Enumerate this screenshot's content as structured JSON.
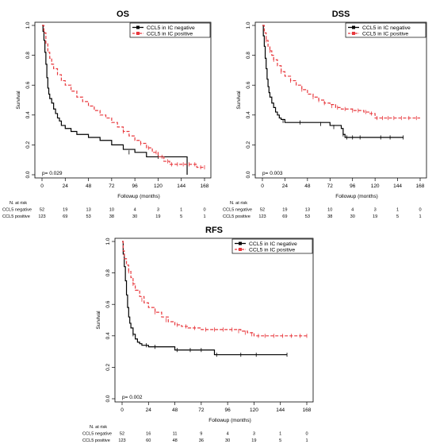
{
  "chart_data": [
    {
      "id": "os",
      "type": "line",
      "title": "OS",
      "xlabel": "Followup (months)",
      "ylabel": "Survival",
      "xlim": [
        0,
        168
      ],
      "ylim": [
        0,
        1
      ],
      "xticks": [
        "0",
        "24",
        "48",
        "72",
        "96",
        "120",
        "144",
        "168"
      ],
      "yticks": [
        "0.0",
        "0.2",
        "0.4",
        "0.6",
        "0.8",
        "1.0"
      ],
      "pvalue": "p= 0.029",
      "legend_position": "top-right",
      "series": [
        {
          "name": "CCL5 in IC negative",
          "color": "#000000",
          "dashed": false,
          "steps": [
            [
              0,
              1.0
            ],
            [
              1,
              0.96
            ],
            [
              2,
              0.9
            ],
            [
              3,
              0.82
            ],
            [
              4,
              0.74
            ],
            [
              5,
              0.65
            ],
            [
              6,
              0.58
            ],
            [
              7,
              0.54
            ],
            [
              8,
              0.51
            ],
            [
              10,
              0.48
            ],
            [
              12,
              0.44
            ],
            [
              14,
              0.41
            ],
            [
              16,
              0.38
            ],
            [
              18,
              0.36
            ],
            [
              20,
              0.33
            ],
            [
              24,
              0.31
            ],
            [
              30,
              0.29
            ],
            [
              36,
              0.27
            ],
            [
              48,
              0.25
            ],
            [
              60,
              0.23
            ],
            [
              72,
              0.2
            ],
            [
              84,
              0.17
            ],
            [
              96,
              0.15
            ],
            [
              108,
              0.12
            ],
            [
              150,
              0.12
            ],
            [
              150,
              0.0
            ]
          ],
          "censors": [
            [
              90,
              0.15
            ],
            [
              120,
              0.12
            ]
          ]
        },
        {
          "name": "CCL5 in IC positive",
          "color": "#e8383d",
          "dashed": true,
          "steps": [
            [
              0,
              1.0
            ],
            [
              2,
              0.95
            ],
            [
              4,
              0.88
            ],
            [
              6,
              0.82
            ],
            [
              8,
              0.78
            ],
            [
              10,
              0.74
            ],
            [
              12,
              0.71
            ],
            [
              16,
              0.67
            ],
            [
              20,
              0.63
            ],
            [
              24,
              0.6
            ],
            [
              30,
              0.56
            ],
            [
              36,
              0.52
            ],
            [
              42,
              0.49
            ],
            [
              48,
              0.46
            ],
            [
              54,
              0.43
            ],
            [
              60,
              0.4
            ],
            [
              66,
              0.38
            ],
            [
              72,
              0.35
            ],
            [
              78,
              0.32
            ],
            [
              84,
              0.29
            ],
            [
              90,
              0.26
            ],
            [
              96,
              0.23
            ],
            [
              102,
              0.21
            ],
            [
              108,
              0.18
            ],
            [
              114,
              0.15
            ],
            [
              120,
              0.12
            ],
            [
              126,
              0.09
            ],
            [
              132,
              0.07
            ],
            [
              156,
              0.07
            ],
            [
              160,
              0.05
            ],
            [
              168,
              0.05
            ]
          ],
          "censors": [
            [
              84,
              0.29
            ],
            [
              102,
              0.21
            ],
            [
              110,
              0.18
            ],
            [
              118,
              0.15
            ],
            [
              124,
              0.12
            ],
            [
              130,
              0.09
            ],
            [
              134,
              0.07
            ],
            [
              140,
              0.07
            ],
            [
              146,
              0.07
            ],
            [
              152,
              0.07
            ],
            [
              158,
              0.07
            ],
            [
              164,
              0.05
            ],
            [
              168,
              0.05
            ]
          ]
        }
      ],
      "risk_table": {
        "header": "N. at risk",
        "rows": [
          {
            "label": "CCL5 negative",
            "values": [
              "52",
              "19",
              "13",
              "10",
              "4",
              "3",
              "1",
              "0"
            ]
          },
          {
            "label": "CCL5 positive",
            "values": [
              "123",
              "69",
              "53",
              "38",
              "30",
              "19",
              "5",
              "1"
            ]
          }
        ]
      }
    },
    {
      "id": "dss",
      "type": "line",
      "title": "DSS",
      "xlabel": "Followup (months)",
      "ylabel": "Survival",
      "xlim": [
        0,
        168
      ],
      "ylim": [
        0,
        1
      ],
      "xticks": [
        "0",
        "24",
        "48",
        "72",
        "96",
        "120",
        "144",
        "168"
      ],
      "yticks": [
        "0.0",
        "0.2",
        "0.4",
        "0.6",
        "0.8",
        "1.0"
      ],
      "pvalue": "p= 0.003",
      "legend_position": "top-right",
      "series": [
        {
          "name": "CCL5 in IC negative",
          "color": "#000000",
          "dashed": false,
          "steps": [
            [
              0,
              1.0
            ],
            [
              1,
              0.93
            ],
            [
              2,
              0.86
            ],
            [
              3,
              0.78
            ],
            [
              4,
              0.71
            ],
            [
              5,
              0.64
            ],
            [
              6,
              0.59
            ],
            [
              7,
              0.55
            ],
            [
              8,
              0.52
            ],
            [
              10,
              0.48
            ],
            [
              12,
              0.45
            ],
            [
              14,
              0.42
            ],
            [
              16,
              0.4
            ],
            [
              18,
              0.38
            ],
            [
              20,
              0.37
            ],
            [
              24,
              0.35
            ],
            [
              48,
              0.35
            ],
            [
              72,
              0.33
            ],
            [
              84,
              0.31
            ],
            [
              86,
              0.27
            ],
            [
              88,
              0.25
            ],
            [
              150,
              0.25
            ]
          ],
          "censors": [
            [
              22,
              0.36
            ],
            [
              40,
              0.35
            ],
            [
              62,
              0.34
            ],
            [
              76,
              0.32
            ],
            [
              86,
              0.27
            ],
            [
              90,
              0.25
            ],
            [
              96,
              0.25
            ],
            [
              104,
              0.25
            ],
            [
              126,
              0.25
            ],
            [
              136,
              0.25
            ],
            [
              150,
              0.25
            ]
          ]
        },
        {
          "name": "CCL5 in IC positive",
          "color": "#e8383d",
          "dashed": true,
          "steps": [
            [
              0,
              1.0
            ],
            [
              2,
              0.95
            ],
            [
              4,
              0.9
            ],
            [
              6,
              0.86
            ],
            [
              8,
              0.83
            ],
            [
              10,
              0.8
            ],
            [
              12,
              0.77
            ],
            [
              16,
              0.73
            ],
            [
              20,
              0.69
            ],
            [
              24,
              0.66
            ],
            [
              30,
              0.63
            ],
            [
              36,
              0.6
            ],
            [
              42,
              0.57
            ],
            [
              48,
              0.54
            ],
            [
              54,
              0.52
            ],
            [
              60,
              0.5
            ],
            [
              66,
              0.48
            ],
            [
              72,
              0.47
            ],
            [
              78,
              0.45
            ],
            [
              84,
              0.44
            ],
            [
              96,
              0.43
            ],
            [
              108,
              0.42
            ],
            [
              114,
              0.41
            ],
            [
              120,
              0.38
            ],
            [
              168,
              0.38
            ]
          ],
          "censors": [
            [
              4,
              0.9
            ],
            [
              8,
              0.83
            ],
            [
              12,
              0.77
            ],
            [
              20,
              0.69
            ],
            [
              30,
              0.63
            ],
            [
              42,
              0.57
            ],
            [
              54,
              0.52
            ],
            [
              60,
              0.5
            ],
            [
              66,
              0.48
            ],
            [
              74,
              0.46
            ],
            [
              80,
              0.45
            ],
            [
              88,
              0.44
            ],
            [
              96,
              0.43
            ],
            [
              102,
              0.43
            ],
            [
              110,
              0.42
            ],
            [
              116,
              0.41
            ],
            [
              122,
              0.38
            ],
            [
              128,
              0.38
            ],
            [
              134,
              0.38
            ],
            [
              140,
              0.38
            ],
            [
              148,
              0.38
            ],
            [
              156,
              0.38
            ],
            [
              164,
              0.38
            ]
          ]
        }
      ],
      "risk_table": {
        "header": "N. at risk",
        "rows": [
          {
            "label": "CCL5 negative",
            "values": [
              "52",
              "19",
              "13",
              "10",
              "4",
              "3",
              "1",
              "0"
            ]
          },
          {
            "label": "CCL5 positive",
            "values": [
              "123",
              "69",
              "53",
              "38",
              "30",
              "19",
              "5",
              "1"
            ]
          }
        ]
      }
    },
    {
      "id": "rfs",
      "type": "line",
      "title": "RFS",
      "xlabel": "Followup (months)",
      "ylabel": "Survival",
      "xlim": [
        0,
        168
      ],
      "ylim": [
        0,
        1
      ],
      "xticks": [
        "0",
        "24",
        "48",
        "72",
        "96",
        "120",
        "144",
        "168"
      ],
      "yticks": [
        "0.0",
        "0.2",
        "0.4",
        "0.6",
        "0.8",
        "1.0"
      ],
      "pvalue": "p= 0.002",
      "legend_position": "top-right",
      "series": [
        {
          "name": "CCL5 in IC negative",
          "color": "#000000",
          "dashed": false,
          "steps": [
            [
              0,
              1.0
            ],
            [
              1,
              0.92
            ],
            [
              2,
              0.84
            ],
            [
              3,
              0.75
            ],
            [
              4,
              0.66
            ],
            [
              5,
              0.58
            ],
            [
              6,
              0.52
            ],
            [
              7,
              0.48
            ],
            [
              8,
              0.45
            ],
            [
              10,
              0.41
            ],
            [
              12,
              0.38
            ],
            [
              14,
              0.36
            ],
            [
              16,
              0.35
            ],
            [
              18,
              0.34
            ],
            [
              24,
              0.33
            ],
            [
              48,
              0.31
            ],
            [
              84,
              0.28
            ],
            [
              150,
              0.28
            ]
          ],
          "censors": [
            [
              10,
              0.41
            ],
            [
              22,
              0.34
            ],
            [
              30,
              0.33
            ],
            [
              50,
              0.31
            ],
            [
              62,
              0.31
            ],
            [
              72,
              0.31
            ],
            [
              86,
              0.28
            ],
            [
              108,
              0.28
            ],
            [
              122,
              0.28
            ],
            [
              150,
              0.28
            ]
          ]
        },
        {
          "name": "CCL5 in IC positive",
          "color": "#e8383d",
          "dashed": true,
          "steps": [
            [
              0,
              1.0
            ],
            [
              1,
              0.94
            ],
            [
              2,
              0.89
            ],
            [
              4,
              0.85
            ],
            [
              6,
              0.81
            ],
            [
              8,
              0.77
            ],
            [
              10,
              0.73
            ],
            [
              12,
              0.69
            ],
            [
              16,
              0.65
            ],
            [
              20,
              0.61
            ],
            [
              24,
              0.58
            ],
            [
              30,
              0.55
            ],
            [
              36,
              0.52
            ],
            [
              42,
              0.49
            ],
            [
              48,
              0.47
            ],
            [
              54,
              0.46
            ],
            [
              60,
              0.45
            ],
            [
              72,
              0.44
            ],
            [
              96,
              0.44
            ],
            [
              108,
              0.43
            ],
            [
              114,
              0.42
            ],
            [
              120,
              0.4
            ],
            [
              168,
              0.4
            ]
          ],
          "censors": [
            [
              6,
              0.81
            ],
            [
              10,
              0.73
            ],
            [
              18,
              0.63
            ],
            [
              30,
              0.55
            ],
            [
              40,
              0.5
            ],
            [
              50,
              0.47
            ],
            [
              58,
              0.46
            ],
            [
              66,
              0.45
            ],
            [
              76,
              0.44
            ],
            [
              84,
              0.44
            ],
            [
              92,
              0.44
            ],
            [
              100,
              0.44
            ],
            [
              106,
              0.43
            ],
            [
              112,
              0.42
            ],
            [
              118,
              0.41
            ],
            [
              124,
              0.4
            ],
            [
              130,
              0.4
            ],
            [
              138,
              0.4
            ],
            [
              146,
              0.4
            ],
            [
              154,
              0.4
            ],
            [
              162,
              0.4
            ],
            [
              168,
              0.4
            ]
          ]
        }
      ],
      "risk_table": {
        "header": "N. at risk",
        "rows": [
          {
            "label": "CCL5 negative",
            "values": [
              "52",
              "16",
              "11",
              "9",
              "4",
              "3",
              "1",
              "0"
            ]
          },
          {
            "label": "CCL5 positive",
            "values": [
              "123",
              "60",
              "48",
              "36",
              "30",
              "19",
              "5",
              "1"
            ]
          }
        ]
      }
    }
  ]
}
